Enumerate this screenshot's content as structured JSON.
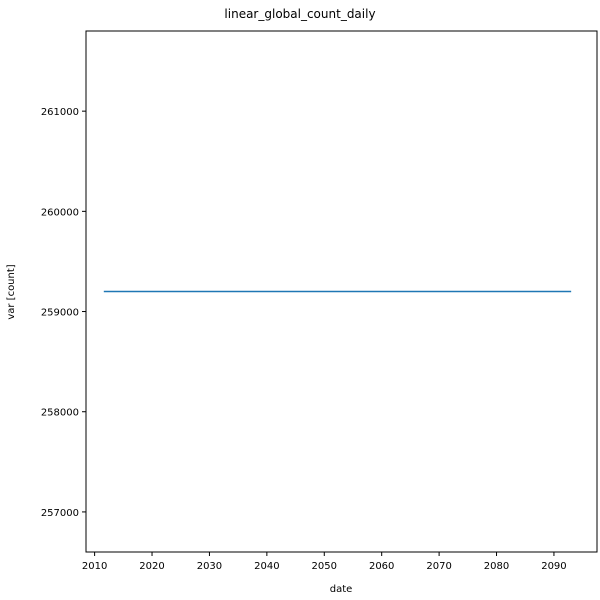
{
  "chart_data": {
    "type": "line",
    "title": "linear_global_count_daily",
    "xlabel": "date",
    "ylabel": "var [count]",
    "xlim": [
      2008.5,
      2097.5
    ],
    "ylim": [
      256600,
      261800
    ],
    "x_ticks": [
      2010,
      2020,
      2030,
      2040,
      2050,
      2060,
      2070,
      2080,
      2090
    ],
    "y_ticks": [
      257000,
      258000,
      259000,
      260000,
      261000
    ],
    "x_tick_labels": [
      "2010",
      "2020",
      "2030",
      "2040",
      "2050",
      "2060",
      "2070",
      "2080",
      "2090"
    ],
    "y_tick_labels": [
      "257000",
      "258000",
      "259000",
      "260000",
      "261000"
    ],
    "grid": false,
    "legend": "none",
    "series": [
      {
        "color": "#1f77b4",
        "x": [
          2011.6,
          2093.0
        ],
        "y": [
          259200,
          259200
        ]
      }
    ]
  }
}
